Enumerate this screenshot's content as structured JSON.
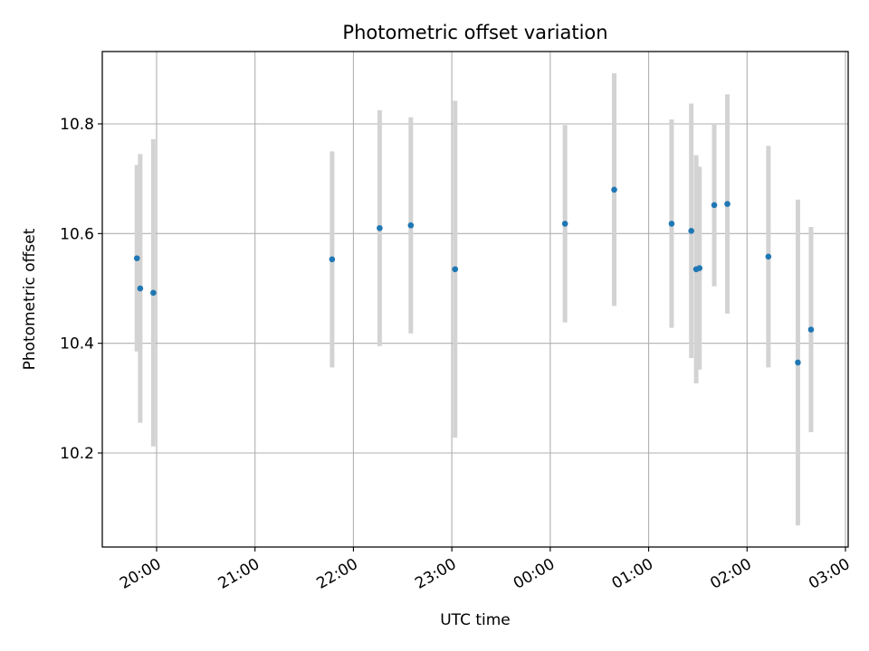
{
  "chart_data": {
    "type": "scatter",
    "title": "Photometric offset variation",
    "xlabel": "UTC time",
    "ylabel": "Photometric offset",
    "x_ticks": [
      "20:00",
      "21:00",
      "22:00",
      "23:00",
      "00:00",
      "01:00",
      "02:00",
      "03:00"
    ],
    "y_ticks": [
      "10.2",
      "10.4",
      "10.6",
      "10.8"
    ],
    "grid": true,
    "colors": {
      "point": "#1f77b4",
      "errorbar": "#d3d3d3",
      "grid": "#b0b0b0"
    },
    "series": [
      {
        "x": [
          "19:48",
          "19:50",
          "19:58",
          "21:47",
          "22:16",
          "22:35",
          "23:02",
          "00:09",
          "00:39",
          "01:14",
          "01:26",
          "01:29",
          "01:31",
          "01:40",
          "01:48",
          "02:13",
          "02:31",
          "02:39"
        ],
        "y": [
          10.555,
          10.5,
          10.492,
          10.553,
          10.61,
          10.615,
          10.535,
          10.618,
          10.68,
          10.618,
          10.605,
          10.535,
          10.537,
          10.652,
          10.654,
          10.558,
          10.365,
          10.425
        ],
        "yerr": [
          0.17,
          0.245,
          0.28,
          0.197,
          0.215,
          0.197,
          0.307,
          0.18,
          0.212,
          0.19,
          0.232,
          0.208,
          0.185,
          0.148,
          0.2,
          0.202,
          0.297,
          0.187
        ]
      }
    ]
  }
}
